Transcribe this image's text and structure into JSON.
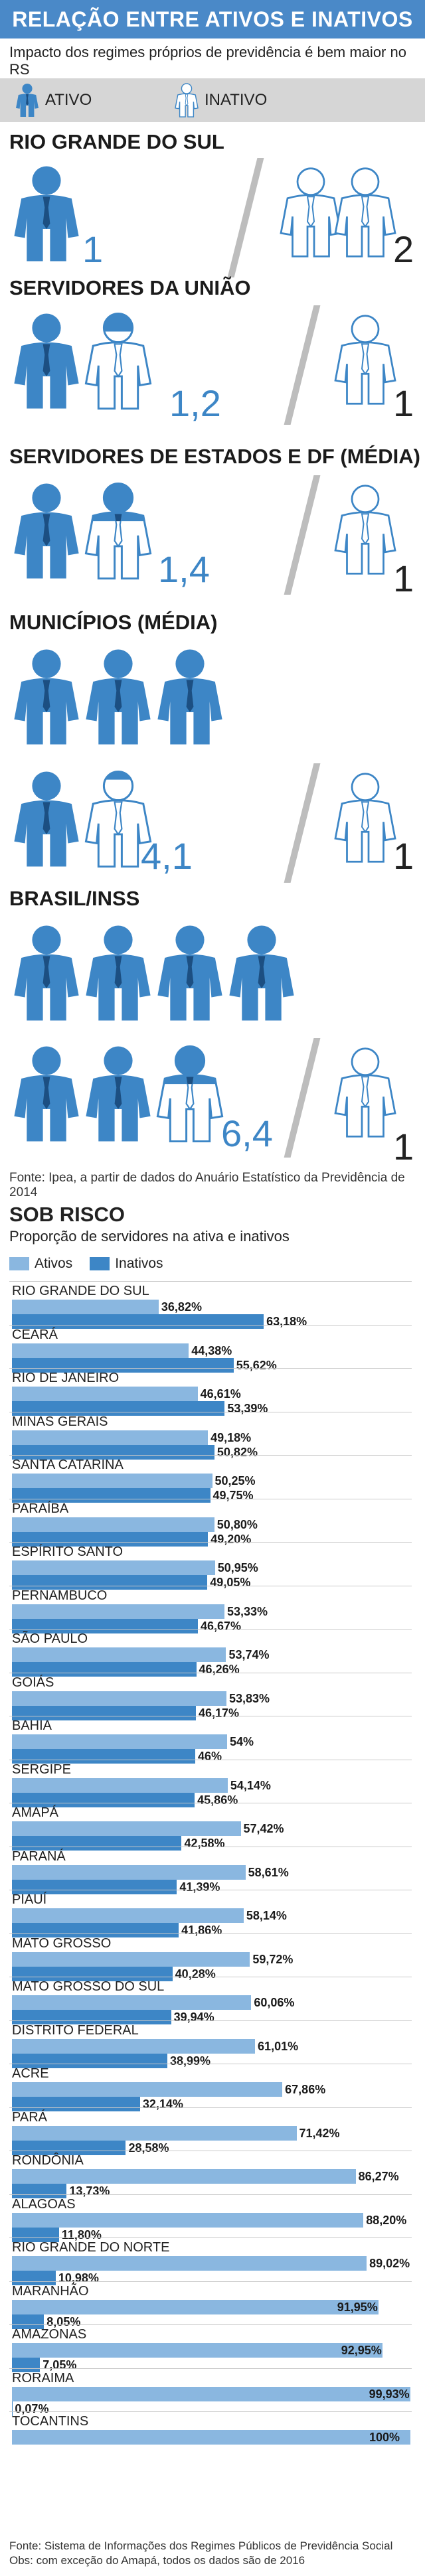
{
  "header": {
    "title": "RELAÇÃO ENTRE ATIVOS E INATIVOS",
    "subtitle": "Impacto dos regimes próprios de previdência é bem maior no RS"
  },
  "legend": {
    "active": "ATIVO",
    "inactive": "INATIVO"
  },
  "colors": {
    "blue_dark": "#3d86c6",
    "blue_light": "#8ab7e0",
    "header": "#4a89c8",
    "divider": "#bdbdbd"
  },
  "icons": {
    "active": "person-filled-icon",
    "inactive": "person-outline-icon"
  },
  "ratios": [
    {
      "name": "RIO GRANDE DO SUL",
      "active": "1",
      "inactive": "2",
      "active_count": 1,
      "inactive_count": 2
    },
    {
      "name": "SERVIDORES DA UNIÃO",
      "active": "1,2",
      "inactive": "1",
      "active_count": 1.2,
      "inactive_count": 1
    },
    {
      "name": "SERVIDORES DE ESTADOS E DF (MÉDIA)",
      "active": "1,4",
      "inactive": "1",
      "active_count": 1.4,
      "inactive_count": 1
    },
    {
      "name": "MUNICÍPIOS (MÉDIA)",
      "active": "4,1",
      "inactive": "1",
      "active_count": 4.1,
      "inactive_count": 1
    },
    {
      "name": "BRASIL/INSS",
      "active": "6,4",
      "inactive": "1",
      "active_count": 6.4,
      "inactive_count": 1
    }
  ],
  "source1": "Fonte: Ipea, a partir de dados do Anuário Estatístico da Previdência de 2014",
  "sob_risco": {
    "title": "SOB RISCO",
    "subtitle": "Proporção de servidores na ativa e inativos",
    "legend_active": "Ativos",
    "legend_inactive": "Inativos"
  },
  "chart_data": {
    "type": "bar",
    "orientation": "horizontal",
    "title": "SOB RISCO",
    "subtitle": "Proporção de servidores na ativa e inativos",
    "categories": [
      "RIO GRANDE DO SUL",
      "CEARÁ",
      "RIO DE JANEIRO",
      "MINAS GERAIS",
      "SANTA CATARINA",
      "PARAÍBA",
      "ESPÍRITO SANTO",
      "PERNAMBUCO",
      "SÃO PAULO",
      "GOIÁS",
      "BAHIA",
      "SERGIPE",
      "AMAPÁ",
      "PARANÁ",
      "PIAUÍ",
      "MATO GROSSO",
      "MATO GROSSO DO SUL",
      "DISTRITO FEDERAL",
      "ACRE",
      "PARÁ",
      "RONDÔNIA",
      "ALAGOAS",
      "RIO GRANDE DO NORTE",
      "MARANHÃO",
      "AMAZONAS",
      "RORAIMA",
      "TOCANTINS"
    ],
    "series": [
      {
        "name": "Ativos",
        "values": [
          36.82,
          44.38,
          46.61,
          49.18,
          50.25,
          50.8,
          50.95,
          53.33,
          53.74,
          53.83,
          54,
          54.14,
          57.42,
          58.61,
          58.14,
          59.72,
          60.06,
          61.01,
          67.86,
          71.42,
          86.27,
          88.2,
          89.02,
          91.95,
          92.95,
          99.93,
          100
        ],
        "labels": [
          "36,82%",
          "44,38%",
          "46,61%",
          "49,18%",
          "50,25%",
          "50,80%",
          "50,95%",
          "53,33%",
          "53,74%",
          "53,83%",
          "54%",
          "54,14%",
          "57,42%",
          "58,61%",
          "58,14%",
          "59,72%",
          "60,06%",
          "61,01%",
          "67,86%",
          "71,42%",
          "86,27%",
          "88,20%",
          "89,02%",
          "91,95%",
          "92,95%",
          "99,93%",
          "100%"
        ]
      },
      {
        "name": "Inativos",
        "values": [
          63.18,
          55.62,
          53.39,
          50.82,
          49.75,
          49.2,
          49.05,
          46.67,
          46.26,
          46.17,
          46,
          45.86,
          42.58,
          41.39,
          41.86,
          40.28,
          39.94,
          38.99,
          32.14,
          28.58,
          13.73,
          11.8,
          10.98,
          8.05,
          7.05,
          0.07,
          null
        ],
        "labels": [
          "63,18%",
          "55,62%",
          "53,39%",
          "50,82%",
          "49,75%",
          "49,20%",
          "49,05%",
          "46,67%",
          "46,26%",
          "46,17%",
          "46%",
          "45,86%",
          "42,58%",
          "41,39%",
          "41,86%",
          "40,28%",
          "39,94%",
          "38,99%",
          "32,14%",
          "28,58%",
          "13,73%",
          "11,80%",
          "10,98%",
          "8,05%",
          "7,05%",
          "0,07%",
          ""
        ]
      }
    ],
    "xlim": [
      0,
      100
    ],
    "legend_position": "top-left",
    "grid": false
  },
  "footer": {
    "line1": "Fonte: Sistema de Informações dos Regimes Públicos de Previdência Social",
    "line2": "Obs: com exceção do Amapá, todos os dados são de 2016"
  }
}
